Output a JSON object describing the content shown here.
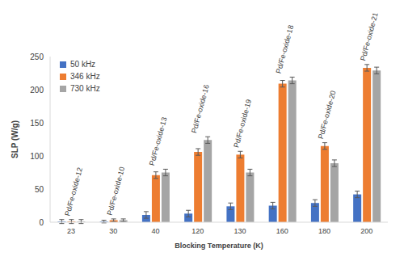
{
  "chart_data": {
    "type": "bar",
    "x_label": "Blocking Temperature (K)",
    "y_label": "SLP (W/g)",
    "categories": [
      "23",
      "30",
      "40",
      "120",
      "130",
      "160",
      "180",
      "200"
    ],
    "annotations": [
      "Pd/Fe-oxide-12",
      "Pd/Fe-oxide-10",
      "Pd/Fe-oxide-13",
      "Pd/Fe-oxide-16",
      "Pd/Fe-oxide-19",
      "Pd/Fe-oxide-18",
      "Pd/Fe-oxide-20",
      "Pd/Fe-oxide-21"
    ],
    "series": [
      {
        "name": "50 kHz",
        "color": "#4472c4",
        "values": [
          1,
          1,
          11,
          13,
          24,
          25,
          29,
          42
        ],
        "errors": [
          3,
          2,
          5,
          5,
          5,
          5,
          5,
          5
        ]
      },
      {
        "name": "346 kHz",
        "color": "#ed7d31",
        "values": [
          1,
          3,
          71,
          106,
          102,
          209,
          115,
          233
        ],
        "errors": [
          3,
          2,
          5,
          5,
          5,
          5,
          5,
          5
        ]
      },
      {
        "name": "730 kHz",
        "color": "#a5a5a5",
        "values": [
          1,
          3,
          75,
          124,
          75,
          214,
          89,
          229
        ],
        "errors": [
          3,
          2,
          5,
          5,
          5,
          5,
          5,
          5
        ]
      }
    ],
    "ylim": [
      0,
      250
    ],
    "yticks": [
      0,
      50,
      100,
      150,
      200,
      250
    ],
    "grid": false,
    "legend": "top-left"
  }
}
